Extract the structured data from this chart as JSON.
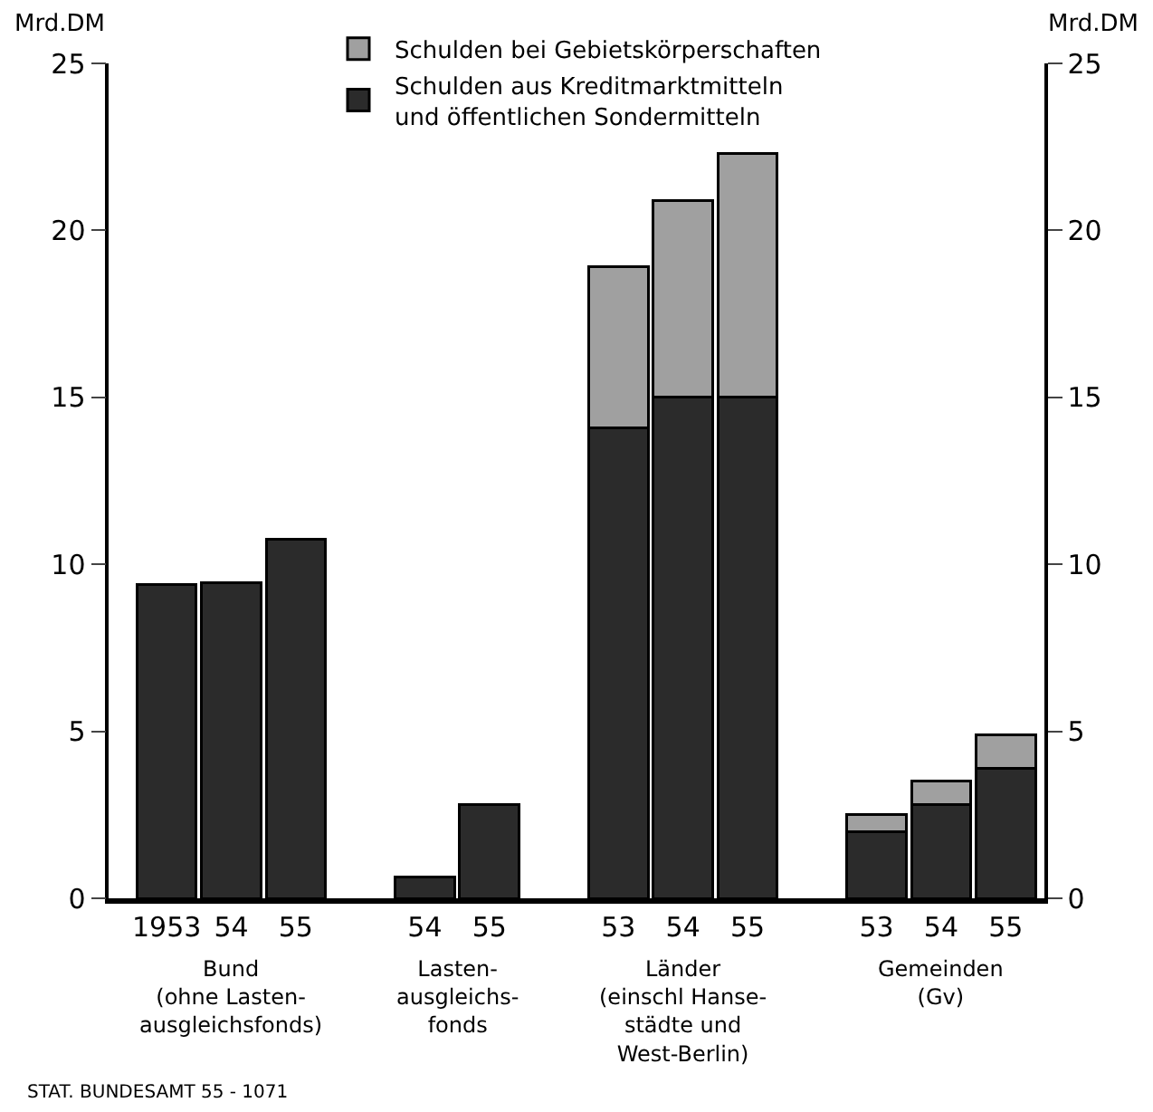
{
  "chart_data": {
    "type": "bar",
    "stacked": true,
    "categories": [
      "1953",
      "54",
      "55",
      null,
      "54",
      "55",
      null,
      "53",
      "54",
      "55",
      null,
      "53",
      "54",
      "55"
    ],
    "series": [
      {
        "name": "Schulden aus Kreditmarktmitteln\nund öffentlichen Sondermitteln",
        "color": "#2b2b2b",
        "values": [
          9.4,
          9.45,
          10.75,
          null,
          0.65,
          2.8,
          null,
          14.1,
          15.0,
          15.0,
          null,
          2.0,
          2.8,
          3.9
        ]
      },
      {
        "name": "Schulden bei Gebietskörperschaften",
        "color": "#a0a0a0",
        "values": [
          null,
          null,
          null,
          null,
          null,
          null,
          null,
          4.8,
          5.9,
          7.3,
          null,
          0.5,
          0.7,
          1.0
        ]
      }
    ],
    "ylabel": "Mrd.DM",
    "y2label": "Mrd.DM",
    "ylim": [
      0,
      25
    ],
    "yticks": [
      0,
      5,
      10,
      15,
      20,
      25
    ],
    "y2lim": [
      0,
      25
    ],
    "y2ticks": [
      0,
      5,
      10,
      15,
      20,
      25
    ],
    "legend": "top",
    "annotations": [
      "Bund\n(ohne Lasten-\nausgleichsfonds)",
      "Lasten-\nausgleichs-\nfonds",
      "Länder\n(einschl Hanse-\nstädte und\nWest-Berlin)",
      "Gemeinden\n(Gv)",
      "STAT. BUNDESAMT 55 - 1071"
    ]
  }
}
